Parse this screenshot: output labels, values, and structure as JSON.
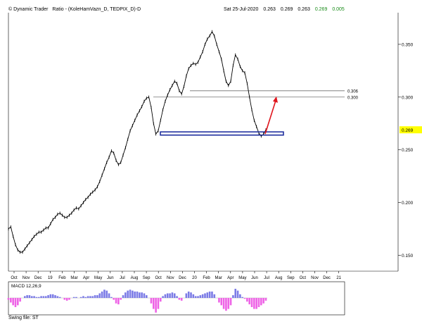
{
  "header": {
    "app": "© Dynamic Trader",
    "chart_title": "Ratio - (KoleHamVazn_D, TEDPIX_D)-D",
    "date": "Sat 25-Jul-2020",
    "open": "0.263",
    "high": "0.269",
    "low": "0.263",
    "close": "0.269",
    "change": "0.005"
  },
  "macd": {
    "label": "MACD 12,26,9"
  },
  "footer": {
    "swing_file": "Swing file: ST"
  },
  "colors": {
    "price": "#000000",
    "support_box": "#1f2f9e",
    "arrow": "#e0141c",
    "macd_positive": "#7b7be6",
    "macd_negative": "#ee63e6",
    "highlight": "#ffff00",
    "change": "#1a8c1a"
  },
  "chart_data": [
    {
      "type": "line",
      "title": "Ratio - (KoleHamVazn_D, TEDPIX_D)-D",
      "x_ticks": [
        "Oct",
        "Nov",
        "Dec",
        "19",
        "Feb",
        "Mar",
        "Apr",
        "May",
        "Jun",
        "Jul",
        "Aug",
        "Sep",
        "Oct",
        "Nov",
        "Dec",
        "20",
        "Feb",
        "Mar",
        "Apr",
        "May",
        "Jun",
        "Jul",
        "Aug",
        "Sep",
        "Oct",
        "Nov",
        "Dec",
        "21"
      ],
      "y_ticks": [
        0.15,
        0.2,
        0.25,
        0.3,
        0.35
      ],
      "ylim": [
        0.135,
        0.38
      ],
      "current_value": 0.269,
      "series": [
        {
          "values": [
            0.175,
            0.177,
            0.168,
            0.16,
            0.155,
            0.153,
            0.153,
            0.156,
            0.159,
            0.162,
            0.165,
            0.168,
            0.17,
            0.172,
            0.172,
            0.174,
            0.176,
            0.176,
            0.18,
            0.184,
            0.186,
            0.189,
            0.19,
            0.188,
            0.186,
            0.186,
            0.188,
            0.19,
            0.193,
            0.195,
            0.194,
            0.197,
            0.2,
            0.203,
            0.205,
            0.208,
            0.21,
            0.212,
            0.215,
            0.22,
            0.226,
            0.232,
            0.238,
            0.243,
            0.249,
            0.247,
            0.24,
            0.236,
            0.238,
            0.245,
            0.252,
            0.26,
            0.268,
            0.273,
            0.278,
            0.283,
            0.287,
            0.291,
            0.296,
            0.299,
            0.3,
            0.29,
            0.275,
            0.265,
            0.268,
            0.278,
            0.288,
            0.296,
            0.302,
            0.307,
            0.311,
            0.315,
            0.313,
            0.306,
            0.303,
            0.31,
            0.32,
            0.327,
            0.33,
            0.332,
            0.331,
            0.333,
            0.338,
            0.343,
            0.35,
            0.355,
            0.358,
            0.362,
            0.358,
            0.35,
            0.343,
            0.336,
            0.325,
            0.315,
            0.311,
            0.315,
            0.33,
            0.34,
            0.336,
            0.329,
            0.325,
            0.323,
            0.313,
            0.3,
            0.288,
            0.278,
            0.272,
            0.266,
            0.263,
            0.265,
            0.269
          ]
        }
      ],
      "annotations": {
        "levels": [
          0.306,
          0.3
        ],
        "support_zone": [
          0.264,
          0.267
        ],
        "projection_arrow": {
          "from": 0.265,
          "to": 0.3
        }
      }
    },
    {
      "type": "bar",
      "title": "MACD 12,26,9",
      "values": [
        -0.2,
        -0.5,
        -0.8,
        -1.0,
        -0.8,
        -0.4,
        0.0,
        0.2,
        0.3,
        0.3,
        0.2,
        0.2,
        0.1,
        0.1,
        0.2,
        0.2,
        0.2,
        0.3,
        0.4,
        0.4,
        0.3,
        0.2,
        0.1,
        0.0,
        -0.2,
        -0.3,
        -0.2,
        0.0,
        0.1,
        0.1,
        0.0,
        0.1,
        0.2,
        0.1,
        0.2,
        0.2,
        0.2,
        0.3,
        0.3,
        0.5,
        0.7,
        0.9,
        0.8,
        0.5,
        0.1,
        -0.2,
        -0.6,
        -0.7,
        -0.2,
        0.3,
        0.6,
        0.8,
        0.9,
        0.8,
        0.7,
        0.7,
        0.6,
        0.6,
        0.5,
        0.3,
        0.0,
        -0.6,
        -1.2,
        -1.6,
        -1.2,
        -0.4,
        0.2,
        0.4,
        0.5,
        0.5,
        0.6,
        0.5,
        0.2,
        -0.2,
        -0.3,
        0.0,
        0.5,
        0.7,
        0.6,
        0.4,
        0.2,
        0.2,
        0.3,
        0.4,
        0.5,
        0.6,
        0.7,
        0.7,
        0.4,
        0.0,
        -0.5,
        -0.8,
        -1.2,
        -1.4,
        -1.2,
        -0.8,
        0.3,
        1.0,
        0.8,
        0.4,
        0.1,
        -0.1,
        -0.4,
        -0.7,
        -1.0,
        -1.2,
        -1.2,
        -1.0,
        -0.8,
        -0.6,
        -0.3
      ]
    }
  ]
}
